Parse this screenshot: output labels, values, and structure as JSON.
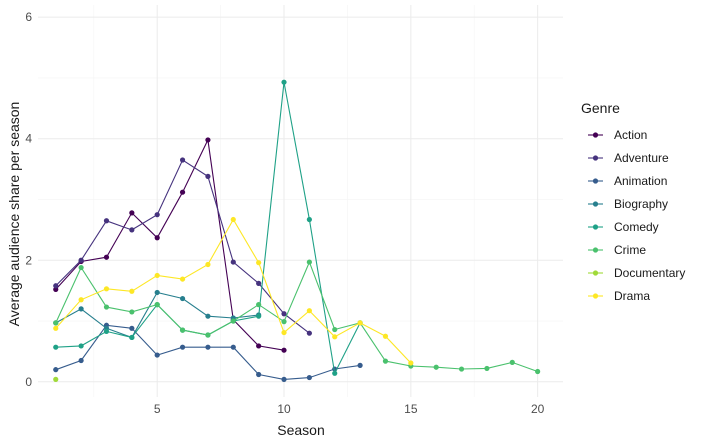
{
  "chart_data": {
    "type": "line",
    "title": "",
    "xlabel": "Season",
    "ylabel": "Average audience share per season",
    "xlim": [
      0.3,
      21
    ],
    "ylim": [
      -0.25,
      6.2
    ],
    "x_ticks": [
      5,
      10,
      15,
      20
    ],
    "y_ticks": [
      0,
      2,
      4,
      6
    ],
    "grid": true,
    "legend": {
      "title": "Genre",
      "position": "right"
    },
    "series": [
      {
        "name": "Action",
        "color": "#440154",
        "x": [
          1,
          2,
          3,
          4,
          5,
          6,
          7,
          8,
          9,
          10
        ],
        "y": [
          1.52,
          1.98,
          2.05,
          2.78,
          2.37,
          3.12,
          3.98,
          1.02,
          0.59,
          0.52
        ]
      },
      {
        "name": "Adventure",
        "color": "#46337e",
        "x": [
          1,
          2,
          3,
          4,
          5,
          6,
          7,
          8,
          9,
          10,
          11
        ],
        "y": [
          1.58,
          2.0,
          2.65,
          2.5,
          2.75,
          3.65,
          3.38,
          1.97,
          1.62,
          1.12,
          0.8
        ]
      },
      {
        "name": "Animation",
        "color": "#365c8d",
        "x": [
          1,
          2,
          3,
          4,
          5,
          6,
          7,
          8,
          9,
          10,
          11,
          12,
          13
        ],
        "y": [
          0.2,
          0.35,
          0.93,
          0.88,
          0.44,
          0.57,
          0.57,
          0.57,
          0.12,
          0.04,
          0.07,
          0.21,
          0.27
        ]
      },
      {
        "name": "Biography",
        "color": "#277f8e",
        "x": [
          1,
          2,
          3,
          4,
          5,
          6,
          7,
          8,
          9
        ],
        "y": [
          0.97,
          1.2,
          0.88,
          0.73,
          1.47,
          1.37,
          1.08,
          1.05,
          1.1
        ]
      },
      {
        "name": "Comedy",
        "color": "#1fa187",
        "x": [
          1,
          2,
          3,
          4,
          5,
          6,
          7,
          8,
          9,
          10,
          11,
          12,
          13
        ],
        "y": [
          0.57,
          0.59,
          0.83,
          0.73,
          1.27,
          0.85,
          0.77,
          1.0,
          1.08,
          4.93,
          2.67,
          0.14,
          0.97
        ]
      },
      {
        "name": "Crime",
        "color": "#4ac16d",
        "x": [
          1,
          2,
          3,
          4,
          5,
          6,
          7,
          8,
          9,
          10,
          11,
          12,
          13,
          14,
          15,
          16,
          17,
          18,
          19,
          20
        ],
        "y": [
          0.97,
          1.88,
          1.23,
          1.15,
          1.27,
          0.85,
          0.77,
          1.0,
          1.27,
          0.99,
          1.97,
          0.86,
          0.97,
          0.34,
          0.26,
          0.24,
          0.21,
          0.22,
          0.32,
          0.17
        ]
      },
      {
        "name": "Documentary",
        "color": "#a0da39",
        "x": [
          1
        ],
        "y": [
          0.04
        ]
      },
      {
        "name": "Drama",
        "color": "#fde725",
        "x": [
          1,
          2,
          3,
          4,
          5,
          6,
          7,
          8,
          9,
          10,
          11,
          12,
          13,
          14,
          15
        ],
        "y": [
          0.88,
          1.35,
          1.53,
          1.49,
          1.75,
          1.69,
          1.93,
          2.67,
          1.96,
          0.81,
          1.17,
          0.74,
          0.97,
          0.75,
          0.31
        ]
      }
    ]
  }
}
